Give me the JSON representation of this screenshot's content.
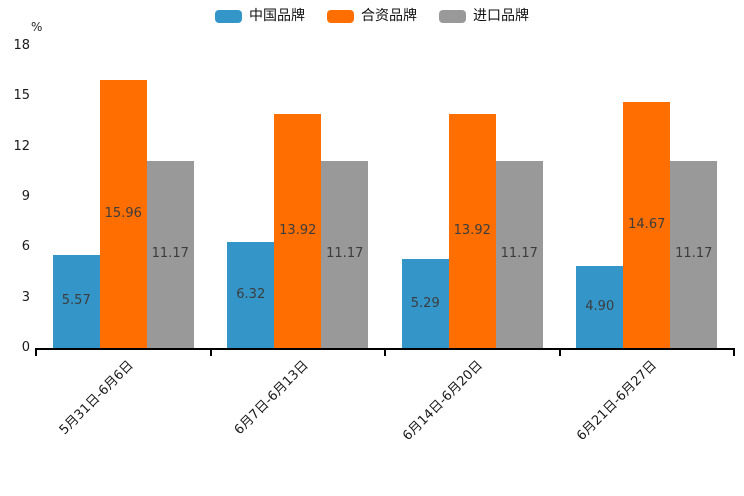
{
  "chart_data": {
    "type": "bar",
    "categories": [
      "5月31日-6月6日",
      "6月7日-6月13日",
      "6月14日-6月20日",
      "6月21日-6月27日"
    ],
    "series": [
      {
        "name": "中国品牌",
        "color": "#3496C8",
        "values": [
          5.57,
          6.32,
          5.29,
          4.9
        ]
      },
      {
        "name": "合资品牌",
        "color": "#FF6E00",
        "values": [
          15.96,
          13.92,
          13.92,
          14.67
        ]
      },
      {
        "name": "进口品牌",
        "color": "#999999",
        "values": [
          11.17,
          11.17,
          11.17,
          11.17
        ]
      }
    ],
    "bar_value_labels": [
      "5.57",
      "15.96",
      "11.17",
      "6.32",
      "13.92",
      "11.17",
      "5.29",
      "13.92",
      "11.17",
      "4.90",
      "14.67",
      "11.17"
    ],
    "title": "",
    "xlabel": "",
    "ylabel": "%",
    "ylim": [
      0,
      18
    ],
    "yticks": [
      0,
      3,
      6,
      9,
      12,
      15,
      18
    ],
    "grid": false,
    "legend_position": "top-center",
    "bar_label_position": "center-inside"
  },
  "colors": {
    "axis": "#000000",
    "bar_label_text": "#3c3c3c",
    "tick_label_text": "#1a1a1a",
    "background": "#ffffff"
  }
}
